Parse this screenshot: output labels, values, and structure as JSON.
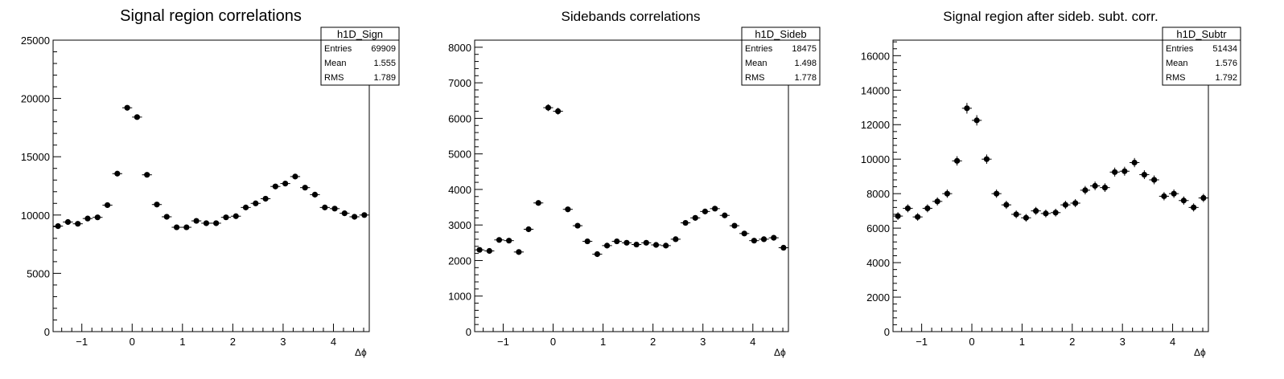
{
  "chart_data": [
    {
      "type": "scatter",
      "title": "Signal region correlations",
      "xlabel": "Δϕ",
      "ylabel": "",
      "xlim": [
        -1.571,
        4.712
      ],
      "ylim": [
        0,
        25000
      ],
      "xticks": [
        -1,
        0,
        1,
        2,
        3,
        4
      ],
      "yticks": [
        0,
        5000,
        10000,
        15000,
        20000,
        25000
      ],
      "tick_labels_x": [
        "−1",
        "0",
        "1",
        "2",
        "3",
        "4"
      ],
      "tick_labels_y": [
        "0",
        "5000",
        "10000",
        "15000",
        "20000",
        "25000"
      ],
      "grid": false,
      "stats": {
        "name": "h1D_Sign",
        "rows": [
          {
            "label": "Entries",
            "value": "69909"
          },
          {
            "label": "Mean",
            "value": "1.555"
          },
          {
            "label": "RMS",
            "value": "1.789"
          }
        ]
      },
      "series": [
        {
          "x": [
            -1.473,
            -1.276,
            -1.08,
            -0.884,
            -0.687,
            -0.491,
            -0.295,
            -0.098,
            0.098,
            0.295,
            0.491,
            0.687,
            0.884,
            1.08,
            1.276,
            1.473,
            1.669,
            1.865,
            2.062,
            2.258,
            2.454,
            2.651,
            2.847,
            3.043,
            3.24,
            3.436,
            3.632,
            3.829,
            4.025,
            4.221,
            4.418,
            4.614
          ],
          "y": [
            9050,
            9400,
            9250,
            9700,
            9800,
            10850,
            13550,
            19200,
            18400,
            13450,
            10900,
            9850,
            8950,
            8950,
            9500,
            9300,
            9300,
            9800,
            9900,
            10650,
            11000,
            11400,
            12450,
            12700,
            13300,
            12350,
            11750,
            10650,
            10550,
            10150,
            9850,
            10000
          ],
          "yerr": [
            110,
            110,
            110,
            115,
            115,
            120,
            140,
            175,
            170,
            140,
            120,
            115,
            110,
            110,
            115,
            115,
            115,
            115,
            115,
            120,
            120,
            125,
            130,
            130,
            135,
            130,
            125,
            120,
            120,
            115,
            115,
            115
          ]
        }
      ]
    },
    {
      "type": "scatter",
      "title": "Sidebands correlations",
      "xlabel": "Δϕ",
      "ylabel": "",
      "xlim": [
        -1.571,
        4.712
      ],
      "ylim": [
        0,
        8200
      ],
      "xticks": [
        -1,
        0,
        1,
        2,
        3,
        4
      ],
      "yticks": [
        0,
        1000,
        2000,
        3000,
        4000,
        5000,
        6000,
        7000,
        8000
      ],
      "tick_labels_x": [
        "−1",
        "0",
        "1",
        "2",
        "3",
        "4"
      ],
      "tick_labels_y": [
        "0",
        "1000",
        "2000",
        "3000",
        "4000",
        "5000",
        "6000",
        "7000",
        "8000"
      ],
      "grid": false,
      "stats": {
        "name": "h1D_Sideb",
        "rows": [
          {
            "label": "Entries",
            "value": "18475"
          },
          {
            "label": "Mean",
            "value": "1.498"
          },
          {
            "label": "RMS",
            "value": "1.778"
          }
        ]
      },
      "series": [
        {
          "x": [
            -1.473,
            -1.276,
            -1.08,
            -0.884,
            -0.687,
            -0.491,
            -0.295,
            -0.098,
            0.098,
            0.295,
            0.491,
            0.687,
            0.884,
            1.08,
            1.276,
            1.473,
            1.669,
            1.865,
            2.062,
            2.258,
            2.454,
            2.651,
            2.847,
            3.043,
            3.24,
            3.436,
            3.632,
            3.829,
            4.025,
            4.221,
            4.418,
            4.614
          ],
          "y": [
            2300,
            2270,
            2580,
            2560,
            2240,
            2880,
            3620,
            6300,
            6200,
            3440,
            2980,
            2540,
            2180,
            2420,
            2540,
            2500,
            2450,
            2500,
            2440,
            2420,
            2600,
            3060,
            3200,
            3380,
            3460,
            3270,
            2980,
            2760,
            2560,
            2600,
            2640,
            2360
          ],
          "yerr": [
            55,
            55,
            60,
            60,
            55,
            60,
            70,
            95,
            95,
            65,
            60,
            55,
            55,
            55,
            60,
            60,
            55,
            60,
            55,
            55,
            60,
            65,
            65,
            65,
            70,
            65,
            60,
            60,
            60,
            60,
            60,
            55
          ]
        }
      ]
    },
    {
      "type": "scatter",
      "title": "Signal region after sideb. subt. corr.",
      "xlabel": "Δϕ",
      "ylabel": "",
      "xlim": [
        -1.571,
        4.712
      ],
      "ylim": [
        0,
        16900
      ],
      "xticks": [
        -1,
        0,
        1,
        2,
        3,
        4
      ],
      "yticks": [
        0,
        2000,
        4000,
        6000,
        8000,
        10000,
        12000,
        14000,
        16000
      ],
      "tick_labels_x": [
        "−1",
        "0",
        "1",
        "2",
        "3",
        "4"
      ],
      "tick_labels_y": [
        "0",
        "2000",
        "4000",
        "6000",
        "8000",
        "10000",
        "12000",
        "14000",
        "16000"
      ],
      "grid": false,
      "stats": {
        "name": "h1D_Subtr",
        "rows": [
          {
            "label": "Entries",
            "value": "51434"
          },
          {
            "label": "Mean",
            "value": "1.576"
          },
          {
            "label": "RMS",
            "value": "1.792"
          }
        ]
      },
      "series": [
        {
          "x": [
            -1.473,
            -1.276,
            -1.08,
            -0.884,
            -0.687,
            -0.491,
            -0.295,
            -0.098,
            0.098,
            0.295,
            0.491,
            0.687,
            0.884,
            1.08,
            1.276,
            1.473,
            1.669,
            1.865,
            2.062,
            2.258,
            2.454,
            2.651,
            2.847,
            3.043,
            3.24,
            3.436,
            3.632,
            3.829,
            4.025,
            4.221,
            4.418,
            4.614
          ],
          "y": [
            6700,
            7150,
            6650,
            7150,
            7550,
            8000,
            9900,
            12950,
            12250,
            10000,
            8000,
            7350,
            6800,
            6600,
            7000,
            6850,
            6900,
            7350,
            7450,
            8200,
            8450,
            8350,
            9250,
            9300,
            9800,
            9100,
            8800,
            7850,
            8000,
            7600,
            7200,
            7750
          ],
          "yerr": [
            220,
            230,
            220,
            230,
            235,
            240,
            270,
            310,
            300,
            270,
            240,
            235,
            225,
            220,
            230,
            225,
            225,
            235,
            235,
            245,
            250,
            250,
            260,
            260,
            265,
            255,
            255,
            240,
            245,
            240,
            235,
            240
          ]
        }
      ]
    }
  ]
}
